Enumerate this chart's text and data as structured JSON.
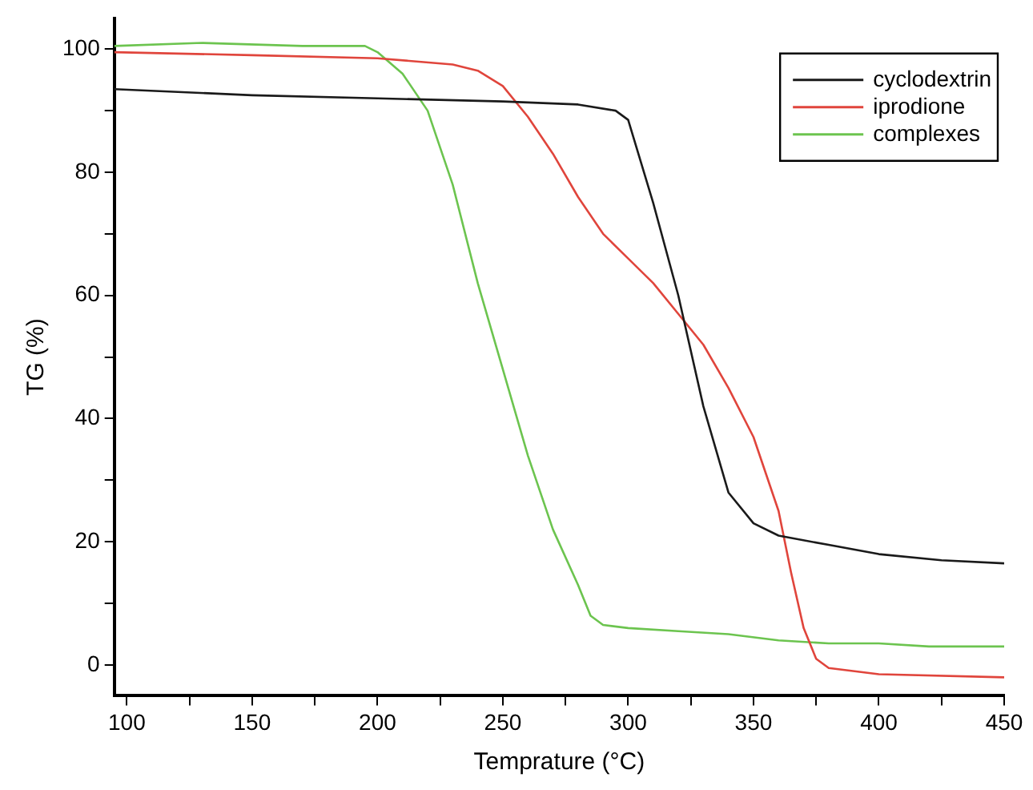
{
  "chart_data": {
    "type": "line",
    "xlabel": "Temprature (°C)",
    "ylabel": "TG (%)",
    "xlim": [
      95,
      450
    ],
    "xticks": [
      100,
      {
        "value": 125,
        "label": null
      },
      150,
      {
        "value": 175,
        "label": null
      },
      200,
      {
        "value": 225,
        "label": null
      },
      250,
      {
        "value": 275,
        "label": null
      },
      300,
      {
        "value": 325,
        "label": null
      },
      350,
      {
        "value": 375,
        "label": null
      },
      400,
      {
        "value": 425,
        "label": null
      },
      450
    ],
    "ylim": [
      -5,
      105
    ],
    "yticks": [
      0,
      {
        "value": 10,
        "label": null
      },
      20,
      {
        "value": 30,
        "label": null
      },
      40,
      {
        "value": 50,
        "label": null
      },
      60,
      {
        "value": 70,
        "label": null
      },
      80,
      {
        "value": 90,
        "label": null
      },
      100
    ],
    "legend": "top right",
    "marker": "none",
    "line_style": "solid",
    "series": [
      {
        "name": "cyclodextrin",
        "color": "#1a1a1a",
        "x": [
          95,
          150,
          200,
          250,
          280,
          295,
          300,
          310,
          320,
          330,
          340,
          350,
          360,
          380,
          400,
          425,
          450
        ],
        "values": [
          93.5,
          92.5,
          92,
          91.5,
          91,
          90,
          88.5,
          75,
          60,
          42,
          28,
          23,
          21,
          19.5,
          18,
          17,
          16.5
        ]
      },
      {
        "name": "iprodione",
        "color": "#e0453c",
        "x": [
          95,
          150,
          200,
          230,
          240,
          250,
          260,
          270,
          280,
          290,
          300,
          310,
          320,
          330,
          340,
          350,
          360,
          365,
          370,
          375,
          380,
          400,
          450
        ],
        "values": [
          99.5,
          99,
          98.5,
          97.5,
          96.5,
          94,
          89,
          83,
          76,
          70,
          66,
          62,
          57,
          52,
          45,
          37,
          25,
          15,
          6,
          1,
          -0.5,
          -1.5,
          -2
        ]
      },
      {
        "name": "complexes",
        "color": "#6cc44f",
        "x": [
          95,
          130,
          170,
          195,
          200,
          210,
          220,
          230,
          240,
          250,
          260,
          270,
          280,
          285,
          290,
          300,
          320,
          340,
          360,
          380,
          400,
          420,
          450
        ],
        "values": [
          100.5,
          101,
          100.5,
          100.5,
          99.5,
          96,
          90,
          78,
          62,
          48,
          34,
          22,
          13,
          8,
          6.5,
          6,
          5.5,
          5,
          4,
          3.5,
          3.5,
          3,
          3
        ]
      }
    ]
  }
}
